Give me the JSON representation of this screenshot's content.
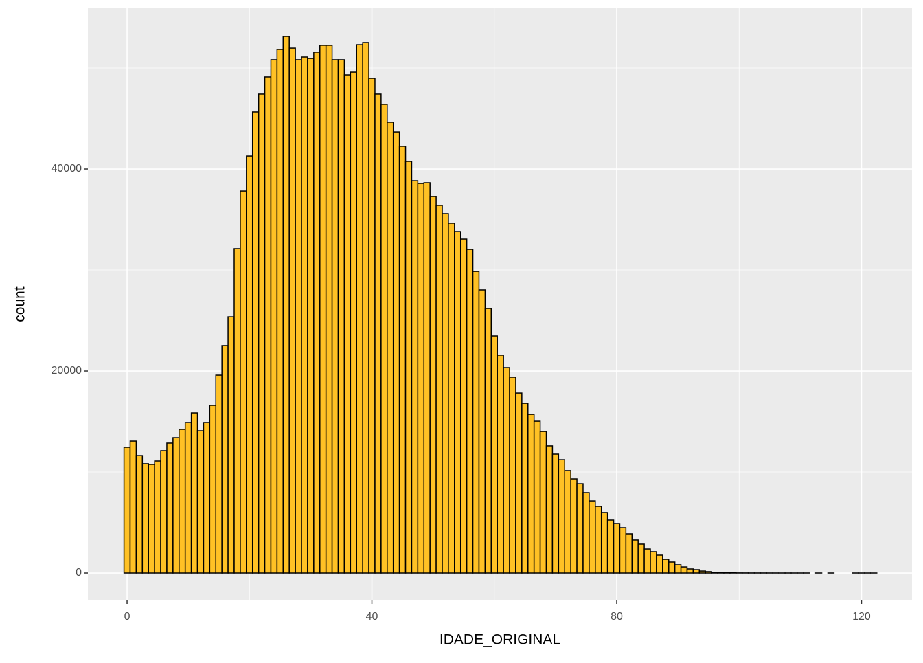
{
  "chart_data": {
    "type": "histogram",
    "x_label": "IDADE_ORIGINAL",
    "y_label": "count",
    "bins": [
      -0.5,
      0.5,
      1.5,
      2.5,
      3.5,
      4.5,
      5.5,
      6.5,
      7.5,
      8.5,
      9.5,
      10.5,
      11.5,
      12.5,
      13.5,
      14.5,
      15.5,
      16.5,
      17.5,
      18.5,
      19.5,
      20.5,
      21.5,
      22.5,
      23.5,
      24.5,
      25.5,
      26.5,
      27.5,
      28.5,
      29.5,
      30.5,
      31.5,
      32.5,
      33.5,
      34.5,
      35.5,
      36.5,
      37.5,
      38.5,
      39.5,
      40.5,
      41.5,
      42.5,
      43.5,
      44.5,
      45.5,
      46.5,
      47.5,
      48.5,
      49.5,
      50.5,
      51.5,
      52.5,
      53.5,
      54.5,
      55.5,
      56.5,
      57.5,
      58.5,
      59.5,
      60.5,
      61.5,
      62.5,
      63.5,
      64.5,
      65.5,
      66.5,
      67.5,
      68.5,
      69.5,
      70.5,
      71.5,
      72.5,
      73.5,
      74.5,
      75.5,
      76.5,
      77.5,
      78.5,
      79.5,
      80.5,
      81.5,
      82.5,
      83.5,
      84.5,
      85.5,
      86.5,
      87.5,
      88.5,
      89.5,
      90.5,
      91.5,
      92.5,
      93.5,
      94.5,
      95.5,
      96.5,
      97.5,
      98.5,
      99.5,
      100.5,
      101.5,
      102.5,
      103.5,
      104.5,
      105.5,
      106.5,
      107.5,
      108.5,
      109.5,
      110.5,
      111.5,
      112.5,
      113.5,
      114.5,
      115.5,
      116.5,
      117.5,
      118.5,
      119.5,
      120.5,
      121.5,
      122.5
    ],
    "counts": [
      12450,
      13060,
      11630,
      10820,
      10750,
      11090,
      12110,
      12860,
      13400,
      14220,
      14900,
      15850,
      14080,
      14900,
      16600,
      19590,
      22520,
      25370,
      32110,
      37820,
      41290,
      45650,
      47420,
      49120,
      50820,
      51840,
      53130,
      51970,
      50820,
      51090,
      50950,
      51570,
      52250,
      52250,
      50820,
      50820,
      49320,
      49590,
      52310,
      52520,
      48980,
      47420,
      46400,
      44630,
      43670,
      42250,
      40750,
      38840,
      38570,
      38640,
      37280,
      36400,
      35580,
      34630,
      33810,
      33060,
      32040,
      29860,
      28030,
      26190,
      23470,
      21570,
      20340,
      19390,
      17820,
      16800,
      15710,
      15030,
      14010,
      12590,
      11770,
      11220,
      10140,
      9320,
      8840,
      7960,
      7140,
      6600,
      5990,
      5240,
      4900,
      4490,
      3880,
      3270,
      2860,
      2380,
      2110,
      1770,
      1360,
      1090,
      820,
      610,
      410,
      340,
      200,
      140,
      70,
      50,
      40,
      20,
      10,
      8,
      6,
      5,
      5,
      4,
      4,
      3,
      3,
      3,
      3,
      3,
      0,
      2,
      0,
      2,
      0,
      0,
      0,
      2,
      2,
      2,
      2
    ],
    "color": "#FFC125",
    "edgecolor": "#000000",
    "xlim": [
      -6.4,
      128.25
    ],
    "xticks": [
      0,
      40,
      80,
      120
    ],
    "xminor": [
      20,
      60,
      100
    ],
    "ylim": [
      -2720,
      55920
    ],
    "yticks": [
      0,
      20000,
      40000
    ],
    "yminor": [
      10000,
      30000,
      50000
    ],
    "grid": true
  }
}
